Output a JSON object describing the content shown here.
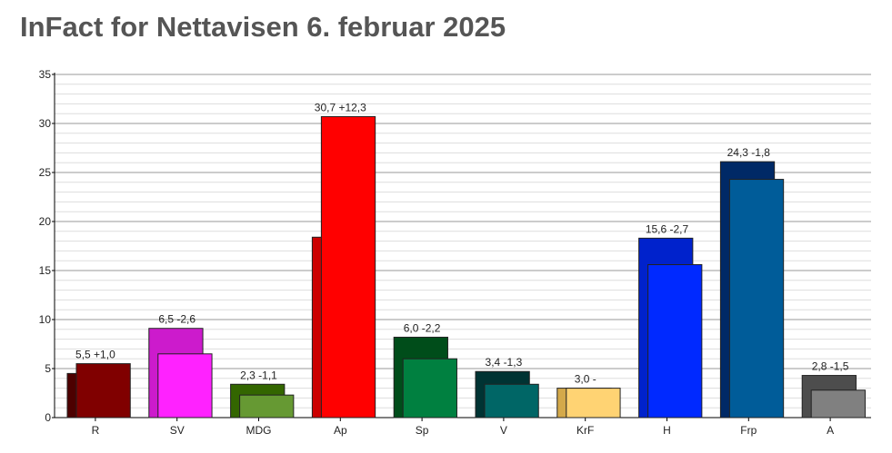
{
  "chart_data": {
    "type": "bar",
    "title": "InFact for Nettavisen 6. februar 2025",
    "categories": [
      "R",
      "SV",
      "MDG",
      "Ap",
      "Sp",
      "V",
      "KrF",
      "H",
      "Frp",
      "A"
    ],
    "series": [
      {
        "colors": [
          "#4d0000",
          "#cc1bcc",
          "#336600",
          "#cc0000",
          "#004d1a",
          "#003333",
          "#d4a94a",
          "#0022cc",
          "#002966",
          "#4d4d4d"
        ],
        "values": [
          4.5,
          9.1,
          3.4,
          18.4,
          8.2,
          4.7,
          3.0,
          18.3,
          26.1,
          4.3
        ]
      },
      {
        "colors": [
          "#800000",
          "#ff22ff",
          "#669933",
          "#ff0000",
          "#008040",
          "#006666",
          "#ffd373",
          "#0029ff",
          "#005c99",
          "#808080"
        ],
        "values": [
          5.5,
          6.5,
          2.3,
          30.7,
          6.0,
          3.4,
          3.0,
          15.6,
          24.3,
          2.8
        ],
        "value_labels": [
          "5,5 +1,0",
          "6,5 -2,6",
          "2,3 -1,1",
          "30,7 +12,3",
          "6,0 -2,2",
          "3,4 -1,3",
          "3,0 -",
          "15,6 -2,7",
          "24,3 -1,8",
          "2,8 -1,5"
        ]
      }
    ],
    "ylim": [
      0,
      35
    ],
    "yticks": [
      0,
      5,
      10,
      15,
      20,
      25,
      30,
      35
    ],
    "minor_yticks": [
      1,
      2,
      3,
      4,
      6,
      7,
      8,
      9,
      11,
      12,
      13,
      14,
      16,
      17,
      18,
      19,
      21,
      22,
      23,
      24,
      26,
      27,
      28,
      29,
      31,
      32,
      33,
      34
    ],
    "grid": true
  }
}
